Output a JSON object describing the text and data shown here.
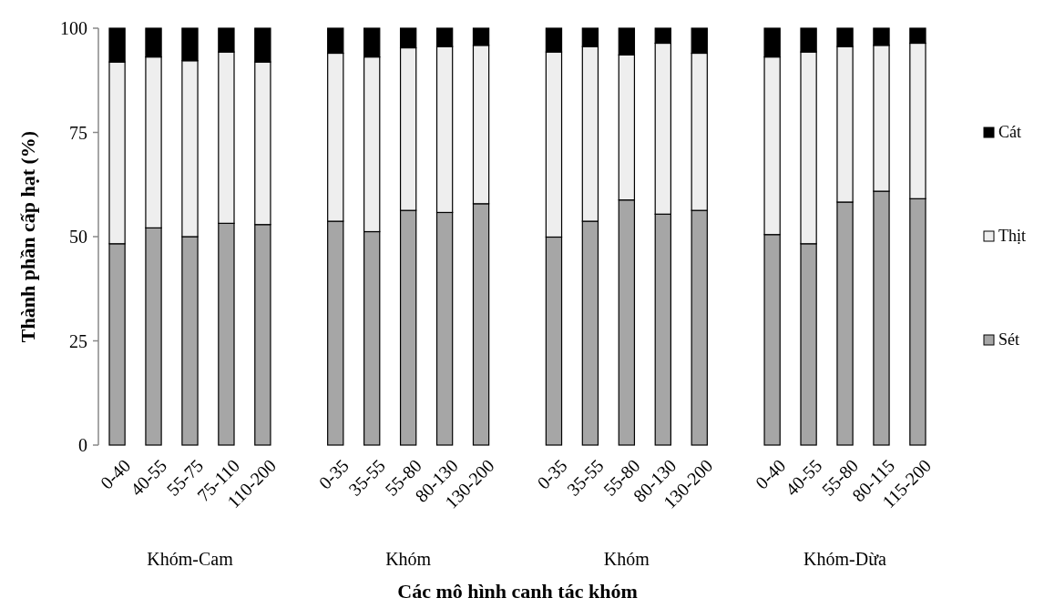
{
  "chart_data": {
    "type": "bar",
    "stacked": true,
    "xlabel": "Các mô hình canh tác khóm",
    "ylabel": "Thành phần cấp hạt (%)",
    "categories": [
      "0-40",
      "40-55",
      "55-75",
      "75-110",
      "110-200",
      null,
      "0-35",
      "35-55",
      "55-80",
      "80-130",
      "130-200",
      null,
      "0-35",
      "35-55",
      "55-80",
      "80-130",
      "130-200",
      null,
      "0-40",
      "40-55",
      "55-80",
      "80-115",
      "115-200"
    ],
    "series": [
      {
        "name": "Sét",
        "color": "#a6a6a6",
        "values": [
          48.3,
          52.1,
          50.0,
          53.2,
          52.9,
          null,
          53.7,
          51.2,
          56.3,
          55.8,
          57.9,
          null,
          49.9,
          53.7,
          58.8,
          55.4,
          56.3,
          null,
          50.5,
          48.3,
          58.3,
          60.9,
          59.1
        ]
      },
      {
        "name": "Thịt",
        "color": "#eeeeee",
        "values": [
          43.6,
          41.0,
          42.2,
          41.1,
          39.0,
          null,
          40.3,
          41.9,
          39.0,
          39.8,
          38.0,
          null,
          44.4,
          41.9,
          34.8,
          41.0,
          37.7,
          null,
          42.6,
          46.0,
          37.3,
          35.0,
          37.3
        ]
      },
      {
        "name": "Cát",
        "color": "#000000",
        "values": [
          8.1,
          6.9,
          7.8,
          5.7,
          8.1,
          null,
          6.0,
          6.9,
          4.7,
          4.4,
          4.1,
          null,
          5.7,
          4.4,
          6.4,
          3.6,
          6.0,
          null,
          6.9,
          5.7,
          4.4,
          4.1,
          3.6
        ]
      }
    ],
    "annotations": [
      "Khóm-Cam",
      "Khóm",
      "Khóm",
      "Khóm-Dừa"
    ],
    "ylim": [
      0,
      100
    ],
    "yticks": [
      0,
      25,
      50,
      75,
      100
    ],
    "grid": false,
    "legend": "right"
  }
}
